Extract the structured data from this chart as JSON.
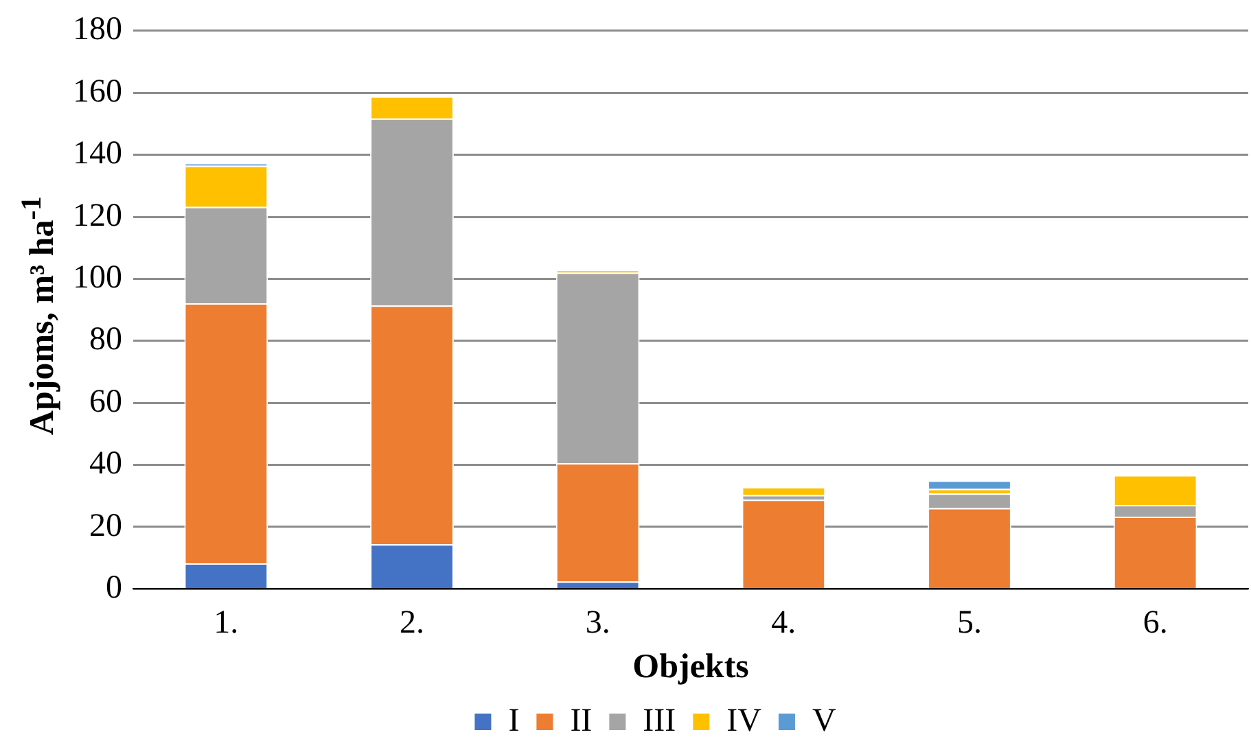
{
  "chart_data": {
    "type": "bar",
    "stacked": true,
    "xlabel": "Objekts",
    "ylabel": "Apjoms, m³ ha$^{-1}$",
    "categories": [
      "1.",
      "2.",
      "3.",
      "4.",
      "5.",
      "6."
    ],
    "series": [
      {
        "name": "I",
        "color": "#4472c4",
        "values": [
          8.3,
          14.4,
          2.4,
          0,
          0,
          0
        ]
      },
      {
        "name": "II",
        "color": "#ed7d31",
        "values": [
          83.8,
          77.0,
          38.2,
          28.8,
          26.1,
          23.3
        ]
      },
      {
        "name": "III",
        "color": "#a5a5a5",
        "values": [
          31.1,
          60.3,
          61.4,
          1.5,
          4.7,
          3.8
        ]
      },
      {
        "name": "IV",
        "color": "#ffc000",
        "values": [
          13.3,
          7.1,
          0.9,
          2.6,
          1.5,
          9.6
        ]
      },
      {
        "name": "V",
        "color": "#5b9bd5",
        "values": [
          0.8,
          0,
          0,
          0,
          2.7,
          0
        ]
      }
    ],
    "ylim": [
      0,
      180
    ],
    "yticks": [
      0,
      20,
      40,
      60,
      80,
      100,
      120,
      140,
      160,
      180
    ],
    "grid": "y",
    "legend": "bottom"
  }
}
